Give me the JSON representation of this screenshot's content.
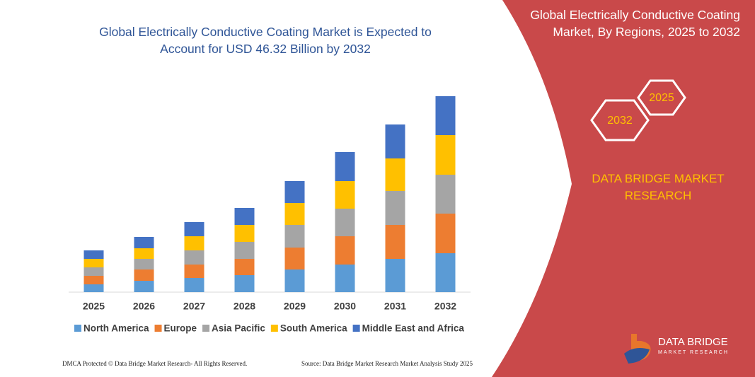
{
  "chart_data": {
    "type": "stacked-bar",
    "title": "Global Electrically Conductive Coating Market is Expected to Account for USD 46.32 Billion by 2032",
    "categories": [
      "2025",
      "2026",
      "2027",
      "2028",
      "2029",
      "2030",
      "2031",
      "2032"
    ],
    "series": [
      {
        "name": "North America",
        "color": "#5b9bd5",
        "values": [
          11,
          16,
          20,
          24,
          32,
          39,
          47,
          55
        ]
      },
      {
        "name": "Europe",
        "color": "#ed7d31",
        "values": [
          12,
          16,
          19,
          23,
          31,
          40,
          48,
          56
        ]
      },
      {
        "name": "Asia Pacific",
        "color": "#a5a5a5",
        "values": [
          12,
          15,
          20,
          24,
          32,
          39,
          48,
          55
        ]
      },
      {
        "name": "South America",
        "color": "#ffc000",
        "values": [
          12,
          15,
          20,
          24,
          31,
          39,
          46,
          56
        ]
      },
      {
        "name": "Middle East and Africa",
        "color": "#4472c4",
        "values": [
          12,
          16,
          20,
          24,
          31,
          41,
          48,
          55
        ]
      }
    ],
    "ylim": [
      0,
      300
    ],
    "legend": "bottom"
  },
  "panel": {
    "title": "Global Electrically Conductive Coating Market, By Regions, 2025 to 2032",
    "hex_small": "2025",
    "hex_large": "2032",
    "brand": "DATA BRIDGE MARKET RESEARCH",
    "logo": "DATA BRIDGE",
    "logo_sub": "MARKET RESEARCH"
  },
  "footer": {
    "left": "DMCA Protected © Data Bridge Market Research- All Rights Reserved.",
    "right": "Source: Data Bridge Market Research Market Analysis Study 2025"
  }
}
